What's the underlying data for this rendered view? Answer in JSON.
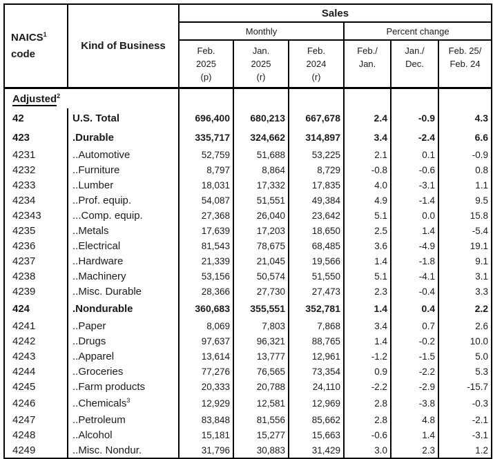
{
  "table": {
    "header": {
      "naics_line1": "NAICS",
      "naics_sup": "1",
      "naics_line2": "code",
      "kind_of_business": "Kind of Business",
      "sales": "Sales",
      "monthly": "Monthly",
      "percent_change": "Percent change",
      "columns": [
        {
          "lines": [
            "Feb.",
            "2025",
            "(p)"
          ]
        },
        {
          "lines": [
            "Jan.",
            "2025",
            "(r)"
          ]
        },
        {
          "lines": [
            "Feb.",
            "2024",
            "(r)"
          ]
        },
        {
          "lines": [
            "Feb./",
            "Jan.",
            ""
          ]
        },
        {
          "lines": [
            "Jan./",
            "Dec.",
            ""
          ]
        },
        {
          "lines": [
            "Feb. 25/",
            "Feb. 24",
            ""
          ]
        }
      ]
    },
    "section": {
      "label": "Adjusted",
      "sup": "2"
    },
    "rows": [
      {
        "code": "42",
        "name": "U.S. Total",
        "bold": true,
        "values": [
          "696,400",
          "680,213",
          "667,678",
          "2.4",
          "-0.9",
          "4.3"
        ]
      },
      {
        "code": "423",
        "name": ".Durable",
        "bold": true,
        "values": [
          "335,717",
          "324,662",
          "314,897",
          "3.4",
          "-2.4",
          "6.6"
        ]
      },
      {
        "code": "4231",
        "name": "..Automotive",
        "values": [
          "52,759",
          "51,688",
          "53,225",
          "2.1",
          "0.1",
          "-0.9"
        ]
      },
      {
        "code": "4232",
        "name": "..Furniture",
        "values": [
          "8,797",
          "8,864",
          "8,729",
          "-0.8",
          "-0.6",
          "0.8"
        ]
      },
      {
        "code": "4233",
        "name": "..Lumber",
        "values": [
          "18,031",
          "17,332",
          "17,835",
          "4.0",
          "-3.1",
          "1.1"
        ]
      },
      {
        "code": "4234",
        "name": "..Prof. equip.",
        "values": [
          "54,087",
          "51,551",
          "49,384",
          "4.9",
          "-1.4",
          "9.5"
        ]
      },
      {
        "code": "42343",
        "name": "...Comp. equip.",
        "values": [
          "27,368",
          "26,040",
          "23,642",
          "5.1",
          "0.0",
          "15.8"
        ]
      },
      {
        "code": "4235",
        "name": "..Metals",
        "values": [
          "17,639",
          "17,203",
          "18,650",
          "2.5",
          "1.4",
          "-5.4"
        ]
      },
      {
        "code": "4236",
        "name": "..Electrical",
        "values": [
          "81,543",
          "78,675",
          "68,485",
          "3.6",
          "-4.9",
          "19.1"
        ]
      },
      {
        "code": "4237",
        "name": "..Hardware",
        "values": [
          "21,339",
          "21,045",
          "19,566",
          "1.4",
          "-1.8",
          "9.1"
        ]
      },
      {
        "code": "4238",
        "name": "..Machinery",
        "values": [
          "53,156",
          "50,574",
          "51,550",
          "5.1",
          "-4.1",
          "3.1"
        ]
      },
      {
        "code": "4239",
        "name": "..Misc. Durable",
        "values": [
          "28,366",
          "27,730",
          "27,473",
          "2.3",
          "-0.4",
          "3.3"
        ]
      },
      {
        "code": "424",
        "name": ".Nondurable",
        "bold": true,
        "values": [
          "360,683",
          "355,551",
          "352,781",
          "1.4",
          "0.4",
          "2.2"
        ]
      },
      {
        "code": "4241",
        "name": "..Paper",
        "values": [
          "8,069",
          "7,803",
          "7,868",
          "3.4",
          "0.7",
          "2.6"
        ]
      },
      {
        "code": "4242",
        "name": "..Drugs",
        "values": [
          "97,637",
          "96,321",
          "88,765",
          "1.4",
          "-0.2",
          "10.0"
        ]
      },
      {
        "code": "4243",
        "name": "..Apparel",
        "values": [
          "13,614",
          "13,777",
          "12,961",
          "-1.2",
          "-1.5",
          "5.0"
        ]
      },
      {
        "code": "4244",
        "name": "..Groceries",
        "values": [
          "77,276",
          "76,565",
          "73,354",
          "0.9",
          "-2.2",
          "5.3"
        ]
      },
      {
        "code": "4245",
        "name": "..Farm products",
        "values": [
          "20,333",
          "20,788",
          "24,110",
          "-2.2",
          "-2.9",
          "-15.7"
        ]
      },
      {
        "code": "4246",
        "name": "..Chemicals",
        "name_sup": "3",
        "tall": true,
        "values": [
          "12,929",
          "12,581",
          "12,969",
          "2.8",
          "-3.8",
          "-0.3"
        ]
      },
      {
        "code": "4247",
        "name": "..Petroleum",
        "values": [
          "83,848",
          "81,556",
          "85,662",
          "2.8",
          "4.8",
          "-2.1"
        ]
      },
      {
        "code": "4248",
        "name": "..Alcohol",
        "values": [
          "15,181",
          "15,277",
          "15,663",
          "-0.6",
          "1.4",
          "-3.1"
        ]
      },
      {
        "code": "4249",
        "name": "..Misc. Nondur.",
        "values": [
          "31,796",
          "30,883",
          "31,429",
          "3.0",
          "2.3",
          "1.2"
        ]
      }
    ]
  }
}
